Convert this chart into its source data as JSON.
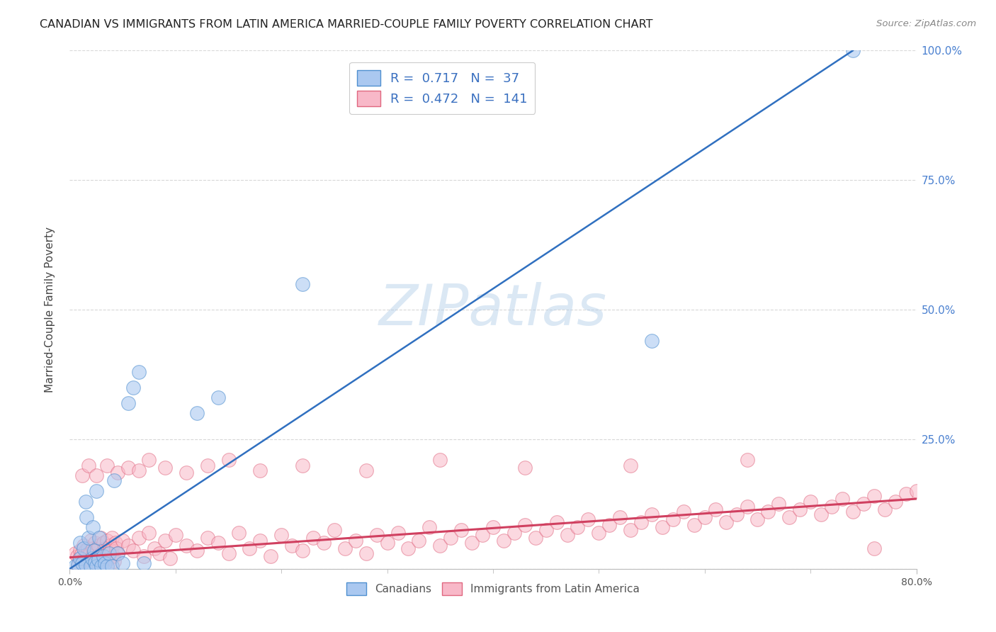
{
  "title": "CANADIAN VS IMMIGRANTS FROM LATIN AMERICA MARRIED-COUPLE FAMILY POVERTY CORRELATION CHART",
  "source": "Source: ZipAtlas.com",
  "ylabel": "Married-Couple Family Poverty",
  "xlim": [
    0,
    0.8
  ],
  "ylim": [
    0,
    1.0
  ],
  "ytick_vals": [
    0.0,
    0.25,
    0.5,
    0.75,
    1.0
  ],
  "ytick_labels": [
    "",
    "25.0%",
    "50.0%",
    "75.0%",
    "100.0%"
  ],
  "xtick_vals": [
    0.0,
    0.8
  ],
  "xtick_labels": [
    "0.0%",
    "80.0%"
  ],
  "blue_fill": "#aac8f0",
  "blue_edge": "#5090d0",
  "pink_fill": "#f8b8c8",
  "pink_edge": "#e06880",
  "blue_line_color": "#3070c0",
  "pink_line_color": "#d04060",
  "R_blue": 0.717,
  "N_blue": 37,
  "R_pink": 0.472,
  "N_pink": 141,
  "watermark": "ZIPatlas",
  "bg_color": "#ffffff",
  "grid_color": "#d8d8d8",
  "blue_x": [
    0.005,
    0.008,
    0.01,
    0.01,
    0.012,
    0.013,
    0.015,
    0.015,
    0.016,
    0.018,
    0.02,
    0.021,
    0.022,
    0.023,
    0.024,
    0.025,
    0.025,
    0.027,
    0.028,
    0.03,
    0.032,
    0.033,
    0.035,
    0.037,
    0.04,
    0.042,
    0.045,
    0.05,
    0.055,
    0.06,
    0.065,
    0.07,
    0.12,
    0.14,
    0.22,
    0.55,
    0.74
  ],
  "blue_y": [
    0.005,
    0.008,
    0.02,
    0.05,
    0.01,
    0.04,
    0.008,
    0.13,
    0.1,
    0.06,
    0.005,
    0.02,
    0.08,
    0.035,
    0.012,
    0.005,
    0.15,
    0.018,
    0.06,
    0.005,
    0.025,
    0.01,
    0.005,
    0.03,
    0.005,
    0.17,
    0.03,
    0.01,
    0.32,
    0.35,
    0.38,
    0.01,
    0.3,
    0.33,
    0.55,
    0.44,
    1.0
  ],
  "pink_x": [
    0.005,
    0.007,
    0.009,
    0.01,
    0.011,
    0.012,
    0.013,
    0.014,
    0.015,
    0.016,
    0.017,
    0.018,
    0.019,
    0.02,
    0.021,
    0.022,
    0.023,
    0.024,
    0.025,
    0.026,
    0.027,
    0.028,
    0.029,
    0.03,
    0.031,
    0.032,
    0.033,
    0.034,
    0.035,
    0.036,
    0.037,
    0.038,
    0.039,
    0.04,
    0.041,
    0.042,
    0.043,
    0.044,
    0.045,
    0.05,
    0.055,
    0.06,
    0.065,
    0.07,
    0.075,
    0.08,
    0.085,
    0.09,
    0.095,
    0.1,
    0.11,
    0.12,
    0.13,
    0.14,
    0.15,
    0.16,
    0.17,
    0.18,
    0.19,
    0.2,
    0.21,
    0.22,
    0.23,
    0.24,
    0.25,
    0.26,
    0.27,
    0.28,
    0.29,
    0.3,
    0.31,
    0.32,
    0.33,
    0.34,
    0.35,
    0.36,
    0.37,
    0.38,
    0.39,
    0.4,
    0.41,
    0.42,
    0.43,
    0.44,
    0.45,
    0.46,
    0.47,
    0.48,
    0.49,
    0.5,
    0.51,
    0.52,
    0.53,
    0.54,
    0.55,
    0.56,
    0.57,
    0.58,
    0.59,
    0.6,
    0.61,
    0.62,
    0.63,
    0.64,
    0.65,
    0.66,
    0.67,
    0.68,
    0.69,
    0.7,
    0.71,
    0.72,
    0.73,
    0.74,
    0.75,
    0.76,
    0.77,
    0.78,
    0.79,
    0.8,
    0.008,
    0.012,
    0.018,
    0.025,
    0.035,
    0.045,
    0.055,
    0.065,
    0.075,
    0.09,
    0.11,
    0.13,
    0.15,
    0.18,
    0.22,
    0.28,
    0.35,
    0.43,
    0.53,
    0.64,
    0.76
  ],
  "pink_y": [
    0.03,
    0.025,
    0.02,
    0.035,
    0.028,
    0.015,
    0.045,
    0.02,
    0.035,
    0.025,
    0.04,
    0.018,
    0.03,
    0.055,
    0.025,
    0.04,
    0.015,
    0.05,
    0.035,
    0.025,
    0.045,
    0.02,
    0.06,
    0.03,
    0.015,
    0.05,
    0.04,
    0.025,
    0.055,
    0.03,
    0.02,
    0.045,
    0.035,
    0.06,
    0.025,
    0.015,
    0.05,
    0.04,
    0.03,
    0.055,
    0.045,
    0.035,
    0.06,
    0.025,
    0.07,
    0.04,
    0.03,
    0.055,
    0.02,
    0.065,
    0.045,
    0.035,
    0.06,
    0.05,
    0.03,
    0.07,
    0.04,
    0.055,
    0.025,
    0.065,
    0.045,
    0.035,
    0.06,
    0.05,
    0.075,
    0.04,
    0.055,
    0.03,
    0.065,
    0.05,
    0.07,
    0.04,
    0.055,
    0.08,
    0.045,
    0.06,
    0.075,
    0.05,
    0.065,
    0.08,
    0.055,
    0.07,
    0.085,
    0.06,
    0.075,
    0.09,
    0.065,
    0.08,
    0.095,
    0.07,
    0.085,
    0.1,
    0.075,
    0.09,
    0.105,
    0.08,
    0.095,
    0.11,
    0.085,
    0.1,
    0.115,
    0.09,
    0.105,
    0.12,
    0.095,
    0.11,
    0.125,
    0.1,
    0.115,
    0.13,
    0.105,
    0.12,
    0.135,
    0.11,
    0.125,
    0.14,
    0.115,
    0.13,
    0.145,
    0.15,
    0.005,
    0.18,
    0.2,
    0.18,
    0.2,
    0.185,
    0.195,
    0.19,
    0.21,
    0.195,
    0.185,
    0.2,
    0.21,
    0.19,
    0.2,
    0.19,
    0.21,
    0.195,
    0.2,
    0.21,
    0.04
  ],
  "blue_line_x": [
    0.0,
    0.74
  ],
  "blue_line_y": [
    0.0,
    1.0
  ],
  "pink_line_x": [
    0.0,
    0.8
  ],
  "pink_line_y": [
    0.022,
    0.135
  ]
}
